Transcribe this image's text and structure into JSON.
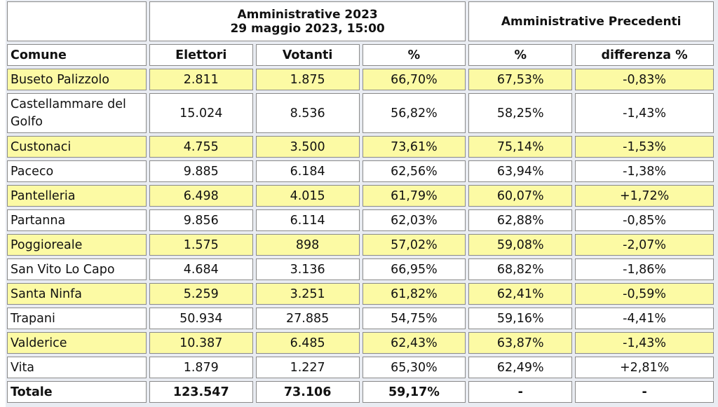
{
  "header": {
    "group1_line1": "Amministrative 2023",
    "group1_line2": "29 maggio 2023, 15:00",
    "group2": "Amministrative Precedenti"
  },
  "columns": [
    "Comune",
    "Elettori",
    "Votanti",
    "%",
    "%",
    "differenza %"
  ],
  "rows": [
    {
      "comune": "Buseto Palizzolo",
      "elettori": "2.811",
      "votanti": "1.875",
      "pct": "66,70%",
      "pct_prec": "67,53%",
      "diff": "-0,83%",
      "highlight": true
    },
    {
      "comune": "Castellammare del Golfo",
      "elettori": "15.024",
      "votanti": "8.536",
      "pct": "56,82%",
      "pct_prec": "58,25%",
      "diff": "-1,43%",
      "highlight": false
    },
    {
      "comune": "Custonaci",
      "elettori": "4.755",
      "votanti": "3.500",
      "pct": "73,61%",
      "pct_prec": "75,14%",
      "diff": "-1,53%",
      "highlight": true
    },
    {
      "comune": "Paceco",
      "elettori": "9.885",
      "votanti": "6.184",
      "pct": "62,56%",
      "pct_prec": "63,94%",
      "diff": "-1,38%",
      "highlight": false
    },
    {
      "comune": "Pantelleria",
      "elettori": "6.498",
      "votanti": "4.015",
      "pct": "61,79%",
      "pct_prec": "60,07%",
      "diff": "+1,72%",
      "highlight": true
    },
    {
      "comune": "Partanna",
      "elettori": "9.856",
      "votanti": "6.114",
      "pct": "62,03%",
      "pct_prec": "62,88%",
      "diff": "-0,85%",
      "highlight": false
    },
    {
      "comune": "Poggioreale",
      "elettori": "1.575",
      "votanti": "898",
      "pct": "57,02%",
      "pct_prec": "59,08%",
      "diff": "-2,07%",
      "highlight": true
    },
    {
      "comune": "San Vito Lo Capo",
      "elettori": "4.684",
      "votanti": "3.136",
      "pct": "66,95%",
      "pct_prec": "68,82%",
      "diff": "-1,86%",
      "highlight": false
    },
    {
      "comune": "Santa Ninfa",
      "elettori": "5.259",
      "votanti": "3.251",
      "pct": "61,82%",
      "pct_prec": "62,41%",
      "diff": "-0,59%",
      "highlight": true
    },
    {
      "comune": "Trapani",
      "elettori": "50.934",
      "votanti": "27.885",
      "pct": "54,75%",
      "pct_prec": "59,16%",
      "diff": "-4,41%",
      "highlight": false
    },
    {
      "comune": "Valderice",
      "elettori": "10.387",
      "votanti": "6.485",
      "pct": "62,43%",
      "pct_prec": "63,87%",
      "diff": "-1,43%",
      "highlight": true
    },
    {
      "comune": "Vita",
      "elettori": "1.879",
      "votanti": "1.227",
      "pct": "65,30%",
      "pct_prec": "62,49%",
      "diff": "+2,81%",
      "highlight": false
    }
  ],
  "total": {
    "comune": "Totale",
    "elettori": "123.547",
    "votanti": "73.106",
    "pct": "59,17%",
    "pct_prec": "-",
    "diff": "-"
  },
  "colors": {
    "highlight": "#fcfaa4",
    "border": "#8a8a8a",
    "background": "#e9ecf2"
  }
}
